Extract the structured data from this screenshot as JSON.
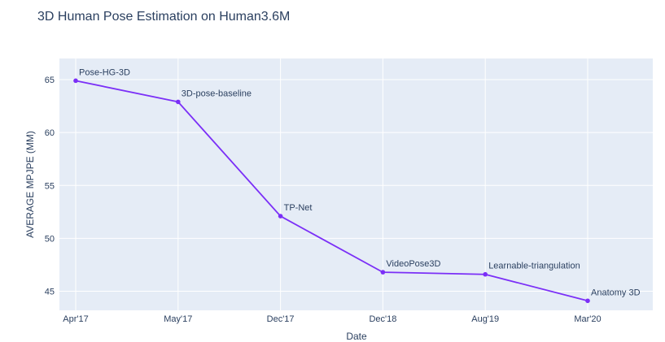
{
  "chart_data": {
    "type": "line",
    "title": "3D Human Pose Estimation on Human3.6M",
    "xlabel": "Date",
    "ylabel": "AVERAGE MPJPE (MM)",
    "x": [
      "Apr'17",
      "May'17",
      "Dec'17",
      "Dec'18",
      "Aug'19",
      "Mar'20"
    ],
    "series": [
      {
        "values": [
          64.9,
          62.9,
          52.1,
          46.8,
          46.6,
          44.1
        ],
        "point_labels": [
          "Pose-HG-3D",
          "3D-pose-baseline",
          "TP-Net",
          "VideoPose3D",
          "Learnable-triangulation",
          "Anatomy 3D"
        ]
      }
    ],
    "y_ticks": [
      45,
      50,
      55,
      60,
      65
    ],
    "ylim": [
      43.2,
      67.0
    ],
    "grid": true,
    "line_color": "#7b2ff7",
    "plot_bg_color": "#e5ecf6",
    "grid_color": "#ffffff",
    "text_color": "#2a3f5f"
  }
}
